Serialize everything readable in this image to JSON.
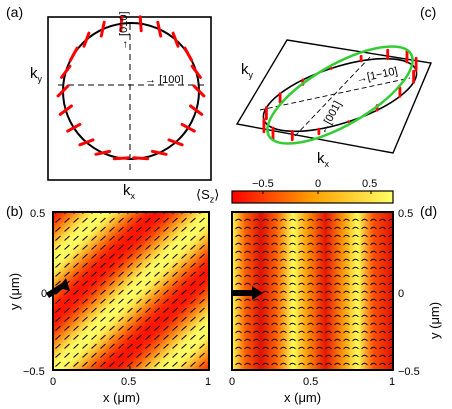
{
  "panels": {
    "a": {
      "label": "(a)",
      "ky": "k",
      "ky_sub": "y",
      "kx": "k",
      "kx_sub": "x",
      "dir_010": "[010]",
      "dir_100": "[100]"
    },
    "b": {
      "label": "(b)"
    },
    "c": {
      "label": "(c)",
      "ky": "k",
      "ky_sub": "y",
      "kx": "k",
      "kx_sub": "x",
      "dir_1m10": "[1−10]",
      "dir_001": "[001]"
    },
    "d": {
      "label": "(d)"
    }
  },
  "colorbar": {
    "label": "⟨S",
    "label_sub": "z",
    "label_end": "⟩",
    "ticks": [
      "−0.5",
      "0",
      "0.5"
    ],
    "colors": [
      "#ff0000",
      "#ffa500",
      "#ffff66"
    ]
  },
  "axes": {
    "left_y_label": "y (μm)",
    "right_y_label": "y (μm)",
    "x_label_left": "x (μm)",
    "x_label_right": "x (μm)",
    "y_ticks": [
      "0.5",
      "0",
      "−0.5"
    ],
    "x_ticks_left": [
      "0",
      "0.5",
      "1"
    ],
    "x_ticks_right": [
      "0",
      "0.5",
      "1"
    ]
  },
  "colors": {
    "spin_arrows": "#ff0000",
    "ellipse": "#33cc33",
    "low": "#ff1a00",
    "high": "#ffff55"
  }
}
